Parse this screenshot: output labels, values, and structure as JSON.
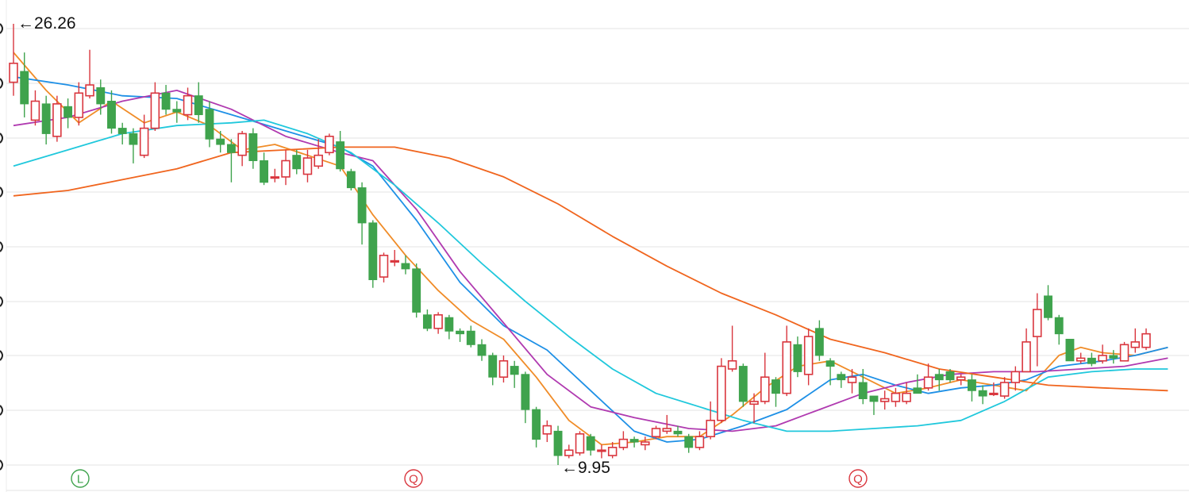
{
  "chart_data": {
    "type": "candlestick",
    "grid": true,
    "colors": {
      "up": "#d9363e",
      "down": "#3fa34d",
      "grid": "#e3e3e3",
      "ma_orange": "#f08c28",
      "ma_blue": "#1e90e6",
      "ma_purple": "#b03ab0",
      "ma_cyan": "#20c8dc",
      "ma_red_orange": "#f0651e",
      "marker_l": "#3fa34d",
      "marker_q": "#d9363e"
    },
    "annotations": {
      "high": {
        "label": "←26.26",
        "value": 26.26
      },
      "low": {
        "label": "←9.95",
        "value": 9.95
      }
    },
    "markers": [
      {
        "label": "L",
        "color": "#3fa34d"
      },
      {
        "label": "Q",
        "color": "#d9363e"
      },
      {
        "label": "Q",
        "color": "#d9363e"
      }
    ],
    "candles": [
      [
        24.1,
        24.8,
        26.26,
        23.6
      ],
      [
        24.5,
        23.3,
        25.2,
        22.8
      ],
      [
        22.7,
        23.4,
        23.8,
        22.5
      ],
      [
        23.3,
        22.2,
        23.6,
        21.8
      ],
      [
        22.1,
        23.3,
        23.6,
        21.9
      ],
      [
        23.2,
        22.8,
        23.5,
        22.4
      ],
      [
        22.8,
        23.7,
        24.1,
        22.5
      ],
      [
        23.6,
        24.0,
        25.3,
        23.5
      ],
      [
        23.9,
        23.3,
        24.2,
        22.9
      ],
      [
        23.4,
        22.4,
        23.8,
        22.2
      ],
      [
        22.4,
        22.2,
        22.6,
        21.8
      ],
      [
        22.2,
        21.8,
        22.4,
        21.1
      ],
      [
        21.4,
        22.4,
        22.9,
        21.3
      ],
      [
        22.4,
        23.7,
        24.1,
        22.3
      ],
      [
        23.7,
        23.1,
        24.0,
        22.9
      ],
      [
        23.1,
        23.0,
        23.4,
        22.6
      ],
      [
        22.9,
        23.6,
        23.9,
        22.7
      ],
      [
        23.6,
        22.9,
        24.1,
        22.6
      ],
      [
        23.1,
        22.0,
        23.4,
        21.7
      ],
      [
        22.0,
        21.8,
        22.3,
        21.5
      ],
      [
        21.8,
        21.5,
        22.0,
        20.4
      ],
      [
        21.4,
        22.2,
        22.3,
        21.0
      ],
      [
        22.2,
        21.2,
        22.4,
        20.9
      ],
      [
        21.2,
        20.4,
        21.5,
        20.3
      ],
      [
        20.6,
        20.6,
        20.9,
        20.4
      ],
      [
        20.6,
        21.2,
        21.6,
        20.3
      ],
      [
        21.4,
        20.9,
        21.6,
        20.7
      ],
      [
        20.7,
        21.3,
        21.6,
        20.4
      ],
      [
        21.0,
        21.4,
        22.0,
        20.9
      ],
      [
        21.5,
        22.1,
        22.2,
        21.4
      ],
      [
        21.9,
        20.9,
        22.3,
        20.8
      ],
      [
        20.8,
        20.2,
        20.9,
        20.1
      ],
      [
        20.2,
        18.9,
        20.4,
        18.1
      ],
      [
        18.9,
        16.8,
        19.0,
        16.5
      ],
      [
        16.9,
        17.7,
        17.8,
        16.7
      ],
      [
        17.5,
        17.5,
        17.9,
        17.3
      ],
      [
        17.4,
        17.2,
        17.7,
        17.0
      ],
      [
        17.2,
        15.6,
        17.4,
        15.4
      ],
      [
        15.5,
        15.0,
        15.7,
        14.9
      ],
      [
        15.0,
        15.5,
        15.6,
        14.8
      ],
      [
        15.4,
        14.9,
        15.5,
        14.6
      ],
      [
        14.9,
        14.8,
        15.0,
        14.5
      ],
      [
        14.9,
        14.4,
        15.1,
        14.3
      ],
      [
        14.4,
        14.0,
        14.6,
        13.8
      ],
      [
        14.0,
        13.2,
        14.1,
        12.9
      ],
      [
        13.2,
        13.8,
        14.0,
        13.0
      ],
      [
        13.6,
        13.3,
        13.8,
        12.8
      ],
      [
        13.3,
        12.0,
        13.4,
        11.5
      ],
      [
        12.0,
        10.9,
        12.1,
        10.6
      ],
      [
        11.1,
        11.4,
        11.6,
        10.8
      ],
      [
        11.2,
        10.3,
        11.4,
        9.95
      ],
      [
        10.3,
        10.5,
        10.7,
        10.2
      ],
      [
        10.4,
        11.1,
        11.2,
        10.3
      ],
      [
        11.0,
        10.5,
        11.1,
        10.3
      ],
      [
        10.5,
        10.5,
        10.7,
        10.2
      ],
      [
        10.3,
        10.6,
        10.8,
        10.2
      ],
      [
        10.6,
        10.9,
        11.2,
        10.5
      ],
      [
        10.9,
        10.8,
        11.0,
        10.6
      ],
      [
        10.7,
        10.8,
        11.0,
        10.5
      ],
      [
        11.0,
        11.3,
        11.4,
        10.9
      ],
      [
        11.2,
        11.3,
        11.8,
        11.1
      ],
      [
        11.2,
        11.1,
        11.4,
        11.0
      ],
      [
        11.0,
        10.6,
        11.1,
        10.4
      ],
      [
        10.6,
        11.0,
        11.2,
        10.5
      ],
      [
        11.0,
        11.6,
        12.3,
        10.9
      ],
      [
        11.6,
        13.6,
        13.9,
        11.5
      ],
      [
        13.5,
        13.8,
        15.1,
        13.4
      ],
      [
        13.6,
        12.3,
        13.7,
        12.1
      ],
      [
        12.2,
        12.3,
        12.6,
        11.5
      ],
      [
        12.3,
        13.2,
        14.1,
        12.2
      ],
      [
        13.1,
        12.6,
        13.2,
        12.1
      ],
      [
        12.6,
        14.5,
        15.1,
        12.5
      ],
      [
        14.4,
        13.4,
        14.7,
        13.2
      ],
      [
        13.3,
        14.7,
        15.0,
        12.9
      ],
      [
        15.0,
        14.0,
        15.3,
        13.8
      ],
      [
        13.8,
        13.6,
        13.9,
        12.9
      ],
      [
        13.3,
        13.1,
        13.4,
        12.8
      ],
      [
        13.0,
        13.2,
        13.5,
        12.6
      ],
      [
        13.0,
        12.4,
        13.5,
        12.2
      ],
      [
        12.5,
        12.3,
        12.5,
        11.8
      ],
      [
        12.3,
        12.4,
        12.7,
        12.0
      ],
      [
        12.3,
        12.6,
        12.8,
        12.1
      ],
      [
        12.3,
        12.6,
        13.0,
        12.2
      ],
      [
        12.8,
        12.6,
        13.3,
        12.6
      ],
      [
        12.8,
        13.2,
        13.7,
        12.7
      ],
      [
        13.3,
        13.1,
        13.5,
        12.7
      ],
      [
        13.4,
        13.1,
        13.5,
        13.0
      ],
      [
        13.1,
        13.2,
        13.3,
        12.9
      ],
      [
        13.1,
        12.7,
        13.3,
        12.3
      ],
      [
        12.7,
        12.5,
        12.9,
        12.2
      ],
      [
        12.6,
        12.6,
        13.0,
        12.5
      ],
      [
        12.5,
        13.0,
        13.2,
        12.4
      ],
      [
        13.0,
        13.4,
        13.6,
        12.7
      ],
      [
        13.4,
        14.5,
        15.0,
        13.4
      ],
      [
        14.7,
        15.7,
        16.3,
        13.6
      ],
      [
        16.2,
        15.4,
        16.6,
        15.3
      ],
      [
        15.4,
        14.8,
        15.5,
        14.4
      ],
      [
        14.6,
        13.8,
        14.6,
        13.8
      ],
      [
        13.8,
        13.9,
        14.1,
        13.7
      ],
      [
        13.9,
        13.7,
        14.1,
        13.6
      ],
      [
        13.8,
        14.0,
        14.4,
        13.7
      ],
      [
        14.0,
        13.9,
        14.2,
        13.7
      ],
      [
        13.8,
        14.4,
        14.5,
        13.8
      ],
      [
        14.3,
        14.5,
        15.0,
        14.1
      ],
      [
        14.3,
        14.8,
        15.0,
        14.2
      ]
    ],
    "moving_averages": [
      {
        "color": "#f08c28",
        "values": [
          [
            0,
            25.2
          ],
          [
            3,
            23.8
          ],
          [
            6,
            22.6
          ],
          [
            9,
            23.4
          ],
          [
            12,
            22.6
          ],
          [
            15,
            23.0
          ],
          [
            18,
            22.5
          ],
          [
            21,
            21.6
          ],
          [
            24,
            21.8
          ],
          [
            27,
            21.4
          ],
          [
            30,
            21.0
          ],
          [
            33,
            19.2
          ],
          [
            36,
            17.7
          ],
          [
            39,
            16.4
          ],
          [
            42,
            15.3
          ],
          [
            45,
            14.6
          ],
          [
            48,
            13.2
          ],
          [
            51,
            11.6
          ],
          [
            54,
            10.7
          ],
          [
            57,
            10.8
          ],
          [
            60,
            11.0
          ],
          [
            63,
            11.0
          ],
          [
            66,
            11.8
          ],
          [
            69,
            12.8
          ],
          [
            72,
            13.6
          ],
          [
            75,
            13.8
          ],
          [
            78,
            13.2
          ],
          [
            81,
            12.6
          ],
          [
            84,
            12.8
          ],
          [
            87,
            13.1
          ],
          [
            90,
            12.9
          ],
          [
            93,
            12.7
          ],
          [
            96,
            14.0
          ],
          [
            98,
            14.3
          ],
          [
            100,
            14.1
          ],
          [
            103,
            14.0
          ],
          [
            106,
            14.3
          ]
        ]
      },
      {
        "color": "#1e90e6",
        "values": [
          [
            0,
            24.3
          ],
          [
            5,
            24.0
          ],
          [
            10,
            23.6
          ],
          [
            15,
            23.5
          ],
          [
            20,
            22.9
          ],
          [
            25,
            22.3
          ],
          [
            30,
            21.7
          ],
          [
            33,
            21.0
          ],
          [
            37,
            19.0
          ],
          [
            41,
            16.7
          ],
          [
            45,
            15.1
          ],
          [
            49,
            14.2
          ],
          [
            53,
            12.7
          ],
          [
            57,
            11.2
          ],
          [
            60,
            10.8
          ],
          [
            63,
            10.9
          ],
          [
            67,
            11.4
          ],
          [
            71,
            12.0
          ],
          [
            75,
            13.1
          ],
          [
            78,
            13.3
          ],
          [
            81,
            12.9
          ],
          [
            84,
            12.6
          ],
          [
            87,
            12.8
          ],
          [
            90,
            12.9
          ],
          [
            93,
            13.1
          ],
          [
            96,
            13.6
          ],
          [
            100,
            13.8
          ],
          [
            103,
            14.0
          ],
          [
            106,
            14.3
          ]
        ]
      },
      {
        "color": "#b03ab0",
        "values": [
          [
            0,
            22.5
          ],
          [
            5,
            22.8
          ],
          [
            10,
            23.4
          ],
          [
            15,
            23.8
          ],
          [
            20,
            23.1
          ],
          [
            25,
            22.1
          ],
          [
            30,
            21.5
          ],
          [
            33,
            21.2
          ],
          [
            37,
            19.4
          ],
          [
            41,
            17.1
          ],
          [
            45,
            15.2
          ],
          [
            49,
            13.3
          ],
          [
            53,
            12.1
          ],
          [
            57,
            11.7
          ],
          [
            62,
            11.3
          ],
          [
            66,
            11.2
          ],
          [
            70,
            11.4
          ],
          [
            74,
            12.0
          ],
          [
            78,
            12.6
          ],
          [
            82,
            13.0
          ],
          [
            86,
            13.3
          ],
          [
            90,
            13.4
          ],
          [
            94,
            13.4
          ],
          [
            98,
            13.5
          ],
          [
            102,
            13.6
          ],
          [
            106,
            13.9
          ]
        ]
      },
      {
        "color": "#20c8dc",
        "values": [
          [
            0,
            21.0
          ],
          [
            5,
            21.6
          ],
          [
            10,
            22.2
          ],
          [
            15,
            22.5
          ],
          [
            20,
            22.6
          ],
          [
            23,
            22.7
          ],
          [
            27,
            22.2
          ],
          [
            31,
            21.5
          ],
          [
            35,
            20.3
          ],
          [
            39,
            18.9
          ],
          [
            43,
            17.4
          ],
          [
            47,
            16.0
          ],
          [
            51,
            14.7
          ],
          [
            55,
            13.5
          ],
          [
            59,
            12.6
          ],
          [
            63,
            12.1
          ],
          [
            67,
            11.6
          ],
          [
            71,
            11.2
          ],
          [
            75,
            11.2
          ],
          [
            79,
            11.3
          ],
          [
            83,
            11.4
          ],
          [
            87,
            11.6
          ],
          [
            91,
            12.3
          ],
          [
            95,
            13.2
          ],
          [
            99,
            13.4
          ],
          [
            103,
            13.5
          ],
          [
            106,
            13.5
          ]
        ]
      },
      {
        "color": "#f0651e",
        "values": [
          [
            0,
            19.9
          ],
          [
            5,
            20.1
          ],
          [
            10,
            20.5
          ],
          [
            15,
            20.9
          ],
          [
            20,
            21.5
          ],
          [
            25,
            21.6
          ],
          [
            30,
            21.7
          ],
          [
            35,
            21.7
          ],
          [
            40,
            21.3
          ],
          [
            45,
            20.6
          ],
          [
            50,
            19.6
          ],
          [
            55,
            18.4
          ],
          [
            60,
            17.3
          ],
          [
            65,
            16.3
          ],
          [
            70,
            15.5
          ],
          [
            75,
            14.6
          ],
          [
            80,
            14.1
          ],
          [
            85,
            13.5
          ],
          [
            90,
            13.2
          ],
          [
            95,
            12.9
          ],
          [
            100,
            12.8
          ],
          [
            106,
            12.7
          ]
        ]
      }
    ]
  }
}
